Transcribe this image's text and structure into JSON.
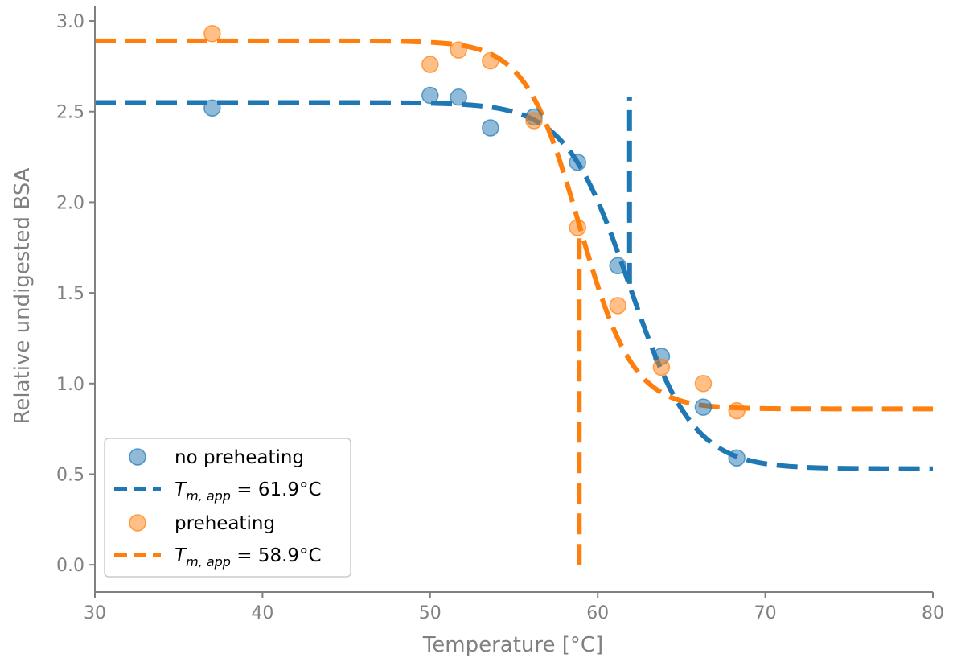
{
  "chart_data": {
    "type": "scatter",
    "xlabel": "Temperature [°C]",
    "ylabel": "Relative undigested BSA",
    "xlim": [
      30,
      80
    ],
    "ylim": [
      -0.15,
      3.08
    ],
    "xticks": [
      30,
      40,
      50,
      60,
      70,
      80
    ],
    "xtick_labels": [
      "30",
      "40",
      "50",
      "60",
      "70",
      "80"
    ],
    "yticks": [
      0.0,
      0.5,
      1.0,
      1.5,
      2.0,
      2.5,
      3.0
    ],
    "ytick_labels": [
      "0.0",
      "0.5",
      "1.0",
      "1.5",
      "2.0",
      "2.5",
      "3.0"
    ],
    "grid": false,
    "legend_position": "bottom-left",
    "series": [
      {
        "name": "no preheating",
        "kind": "points",
        "color": "#1f77b4",
        "x": [
          37.0,
          50.0,
          51.7,
          53.6,
          56.2,
          58.8,
          61.2,
          63.8,
          66.3,
          68.3
        ],
        "y": [
          2.52,
          2.59,
          2.58,
          2.41,
          2.47,
          2.22,
          1.65,
          1.15,
          0.87,
          0.59
        ]
      },
      {
        "name": "preheating",
        "kind": "points",
        "color": "#ff7f0e",
        "x": [
          37.0,
          50.0,
          51.7,
          53.6,
          56.2,
          58.8,
          61.2,
          63.8,
          66.3,
          68.3
        ],
        "y": [
          2.93,
          2.76,
          2.84,
          2.78,
          2.45,
          1.86,
          1.43,
          1.09,
          1.0,
          0.85
        ]
      },
      {
        "name_prefix": "T",
        "name_sub": "m, app",
        "name_suffix": " = 61.9°C",
        "kind": "sigmoid-fit",
        "color": "#1f77b4",
        "top": 2.55,
        "bottom": 0.53,
        "tm": 61.9,
        "slope": 1.9,
        "marker_line": {
          "x": 61.9,
          "y": [
            1.55,
            2.58
          ]
        }
      },
      {
        "name_prefix": "T",
        "name_sub": "m, app",
        "name_suffix": " = 58.9°C",
        "kind": "sigmoid-fit",
        "color": "#ff7f0e",
        "top": 2.89,
        "bottom": 0.86,
        "tm": 58.9,
        "slope": 1.6,
        "marker_line": {
          "x": 58.9,
          "y": [
            0.0,
            1.85
          ]
        }
      }
    ]
  }
}
